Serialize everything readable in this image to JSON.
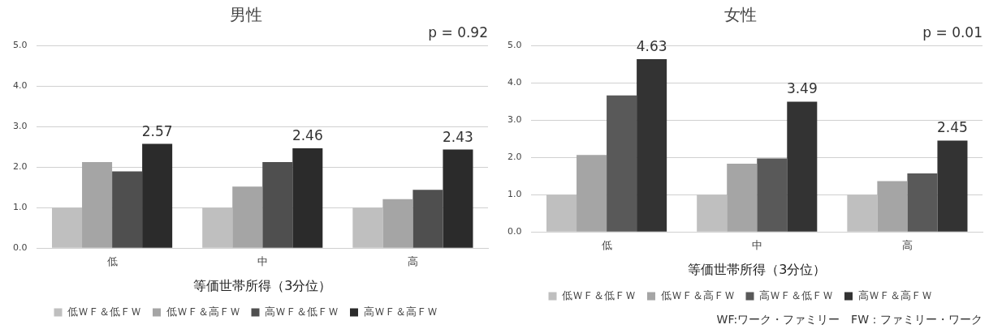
{
  "chart_data": [
    {
      "type": "bar",
      "title": "男性",
      "xlabel": "等価世帯所得（3分位）",
      "categories": [
        "低",
        "中",
        "高"
      ],
      "ylim": [
        0,
        5
      ],
      "yticks": [
        {
          "value": 0,
          "label": "0.0"
        },
        {
          "value": 1,
          "label": "1.0"
        },
        {
          "value": 2,
          "label": "2.0"
        },
        {
          "value": 3,
          "label": "3.0"
        },
        {
          "value": 4,
          "label": "4.0"
        },
        {
          "value": 5,
          "label": "5.0"
        }
      ],
      "grid": "y",
      "legend": "bottom",
      "annotations": [
        "p = 0.92"
      ],
      "series": [
        {
          "name": "低ＷＦ＆低ＦＷ",
          "color": "#bfbfbf",
          "values": [
            1.0,
            1.0,
            1.0
          ]
        },
        {
          "name": "低ＷＦ＆高ＦＷ",
          "color": "#a5a5a5",
          "values": [
            2.12,
            1.52,
            1.21
          ]
        },
        {
          "name": "高ＷＦ＆低ＦＷ",
          "color": "#4f4f4f",
          "values": [
            1.89,
            2.12,
            1.44
          ]
        },
        {
          "name": "高ＷＦ＆高ＦＷ",
          "color": "#2b2b2b",
          "values": [
            2.57,
            2.46,
            2.43
          ],
          "value_labels": [
            "2.57",
            "2.46",
            "2.43"
          ]
        }
      ]
    },
    {
      "type": "bar",
      "title": "女性",
      "xlabel": "等価世帯所得（3分位）",
      "categories": [
        "低",
        "中",
        "高"
      ],
      "ylim": [
        0,
        5
      ],
      "yticks": [
        {
          "value": 0,
          "label": "0.0"
        },
        {
          "value": 1,
          "label": "1.0"
        },
        {
          "value": 2,
          "label": "2.0"
        },
        {
          "value": 3,
          "label": "3.0"
        },
        {
          "value": 4,
          "label": "4.0"
        },
        {
          "value": 5,
          "label": "5.0"
        }
      ],
      "grid": "y",
      "legend": "bottom",
      "annotations": [
        "p = 0.01",
        "WF:ワーク・ファミリー　FW：ファミリー・ワーク"
      ],
      "series": [
        {
          "name": "低ＷＦ＆低ＦＷ",
          "color": "#bfbfbf",
          "values": [
            1.0,
            1.0,
            1.0
          ]
        },
        {
          "name": "低ＷＦ＆高ＦＷ",
          "color": "#a5a5a5",
          "values": [
            2.06,
            1.83,
            1.36
          ]
        },
        {
          "name": "高ＷＦ＆低ＦＷ",
          "color": "#595959",
          "values": [
            3.66,
            1.97,
            1.57
          ]
        },
        {
          "name": "高ＷＦ＆高ＦＷ",
          "color": "#333333",
          "values": [
            4.63,
            3.49,
            2.45
          ],
          "value_labels": [
            "4.63",
            "3.49",
            "2.45"
          ]
        }
      ]
    }
  ]
}
